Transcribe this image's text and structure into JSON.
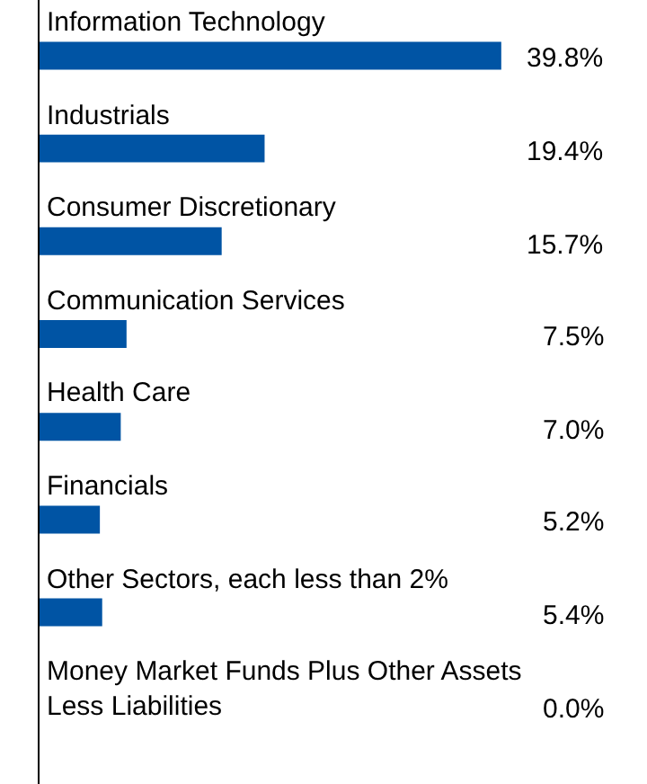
{
  "chart_data": {
    "type": "bar",
    "orientation": "horizontal",
    "categories": [
      "Information Technology",
      "Industrials",
      "Consumer Discretionary",
      "Communication Services",
      "Health Care",
      "Financials",
      "Other Sectors, each less than 2%",
      "Money Market Funds Plus Other Assets Less Liabilities"
    ],
    "values": [
      39.8,
      19.4,
      15.7,
      7.5,
      7.0,
      5.2,
      5.4,
      0.0
    ],
    "value_labels": [
      "39.8%",
      "19.4%",
      "15.7%",
      "7.5%",
      "7.0%",
      "5.2%",
      "5.4%",
      "0.0%"
    ],
    "color": "#0054a4"
  }
}
